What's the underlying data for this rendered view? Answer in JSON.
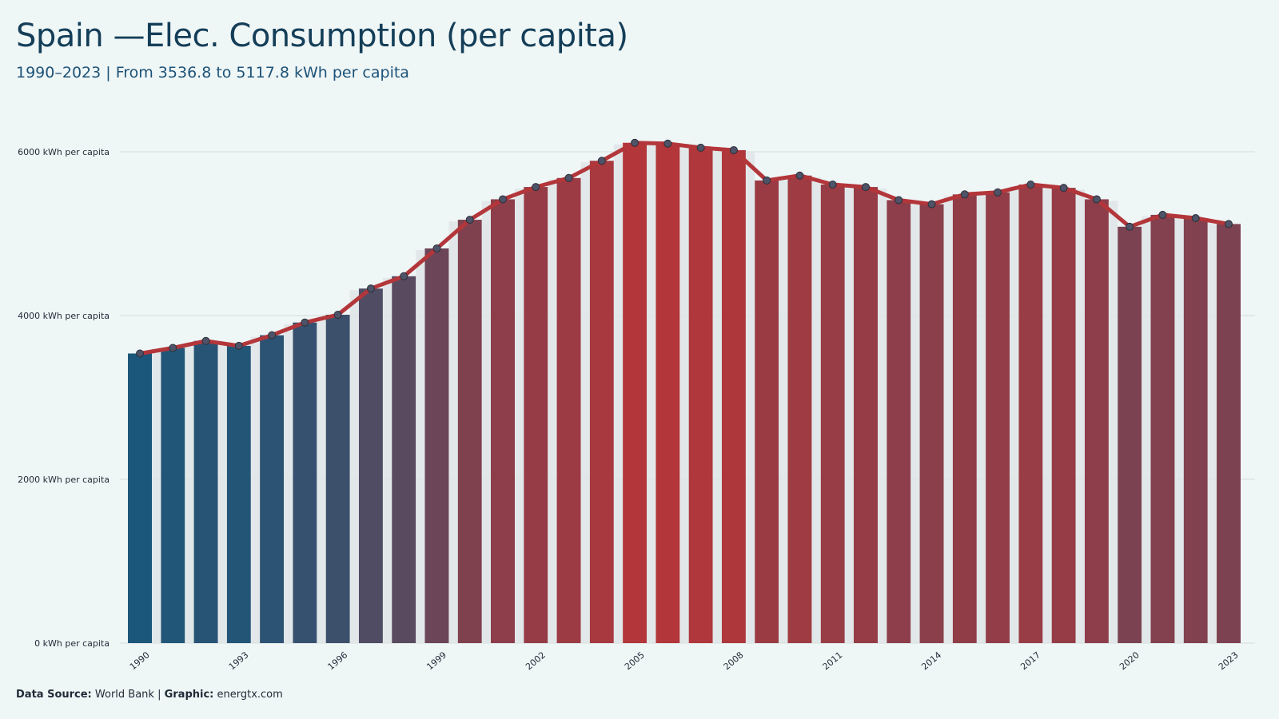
{
  "title": "Spain —Elec. Consumption (per capita)",
  "subtitle": "1990–2023 | From 3536.8 to 5117.8  kWh per capita",
  "footer": {
    "source_label": "Data Source:",
    "source_value": " World Bank | ",
    "graphic_label": "Graphic:",
    "graphic_value": " energtx.com"
  },
  "colors": {
    "background": "#eff6f6",
    "low": "#1b577a",
    "high": "#b3363a",
    "line": "#b3363a",
    "marker_fill": "#4f5367",
    "grid": "#d3dcdc",
    "panel": "#dfe5e6"
  },
  "chart_data": {
    "type": "bar",
    "overlay": "line",
    "x": [
      1990,
      1991,
      1992,
      1993,
      1994,
      1995,
      1996,
      1997,
      1998,
      1999,
      2000,
      2001,
      2002,
      2003,
      2004,
      2005,
      2006,
      2007,
      2008,
      2009,
      2010,
      2011,
      2012,
      2013,
      2014,
      2015,
      2016,
      2017,
      2018,
      2019,
      2020,
      2021,
      2022,
      2023
    ],
    "values": [
      3536.8,
      3605,
      3690,
      3630,
      3760,
      3915,
      4010,
      4330,
      4480,
      4820,
      5170,
      5420,
      5570,
      5680,
      5890,
      6110,
      6100,
      6050,
      6020,
      5650,
      5710,
      5600,
      5570,
      5410,
      5360,
      5480,
      5505,
      5600,
      5560,
      5420,
      5085,
      5230,
      5190,
      5117.8
    ],
    "y_ticks": [
      0,
      2000,
      4000,
      6000
    ],
    "y_tick_labels": [
      "0 kWh per capita",
      "2000 kWh per capita",
      "4000 kWh per capita",
      "6000 kWh per capita"
    ],
    "x_tick_labels": [
      "1990",
      "1993",
      "1996",
      "1999",
      "2002",
      "2005",
      "2008",
      "2011",
      "2014",
      "2017",
      "2020",
      "2023"
    ],
    "ylim": [
      0,
      6300
    ],
    "grid": "horizontal",
    "legend": "none"
  }
}
